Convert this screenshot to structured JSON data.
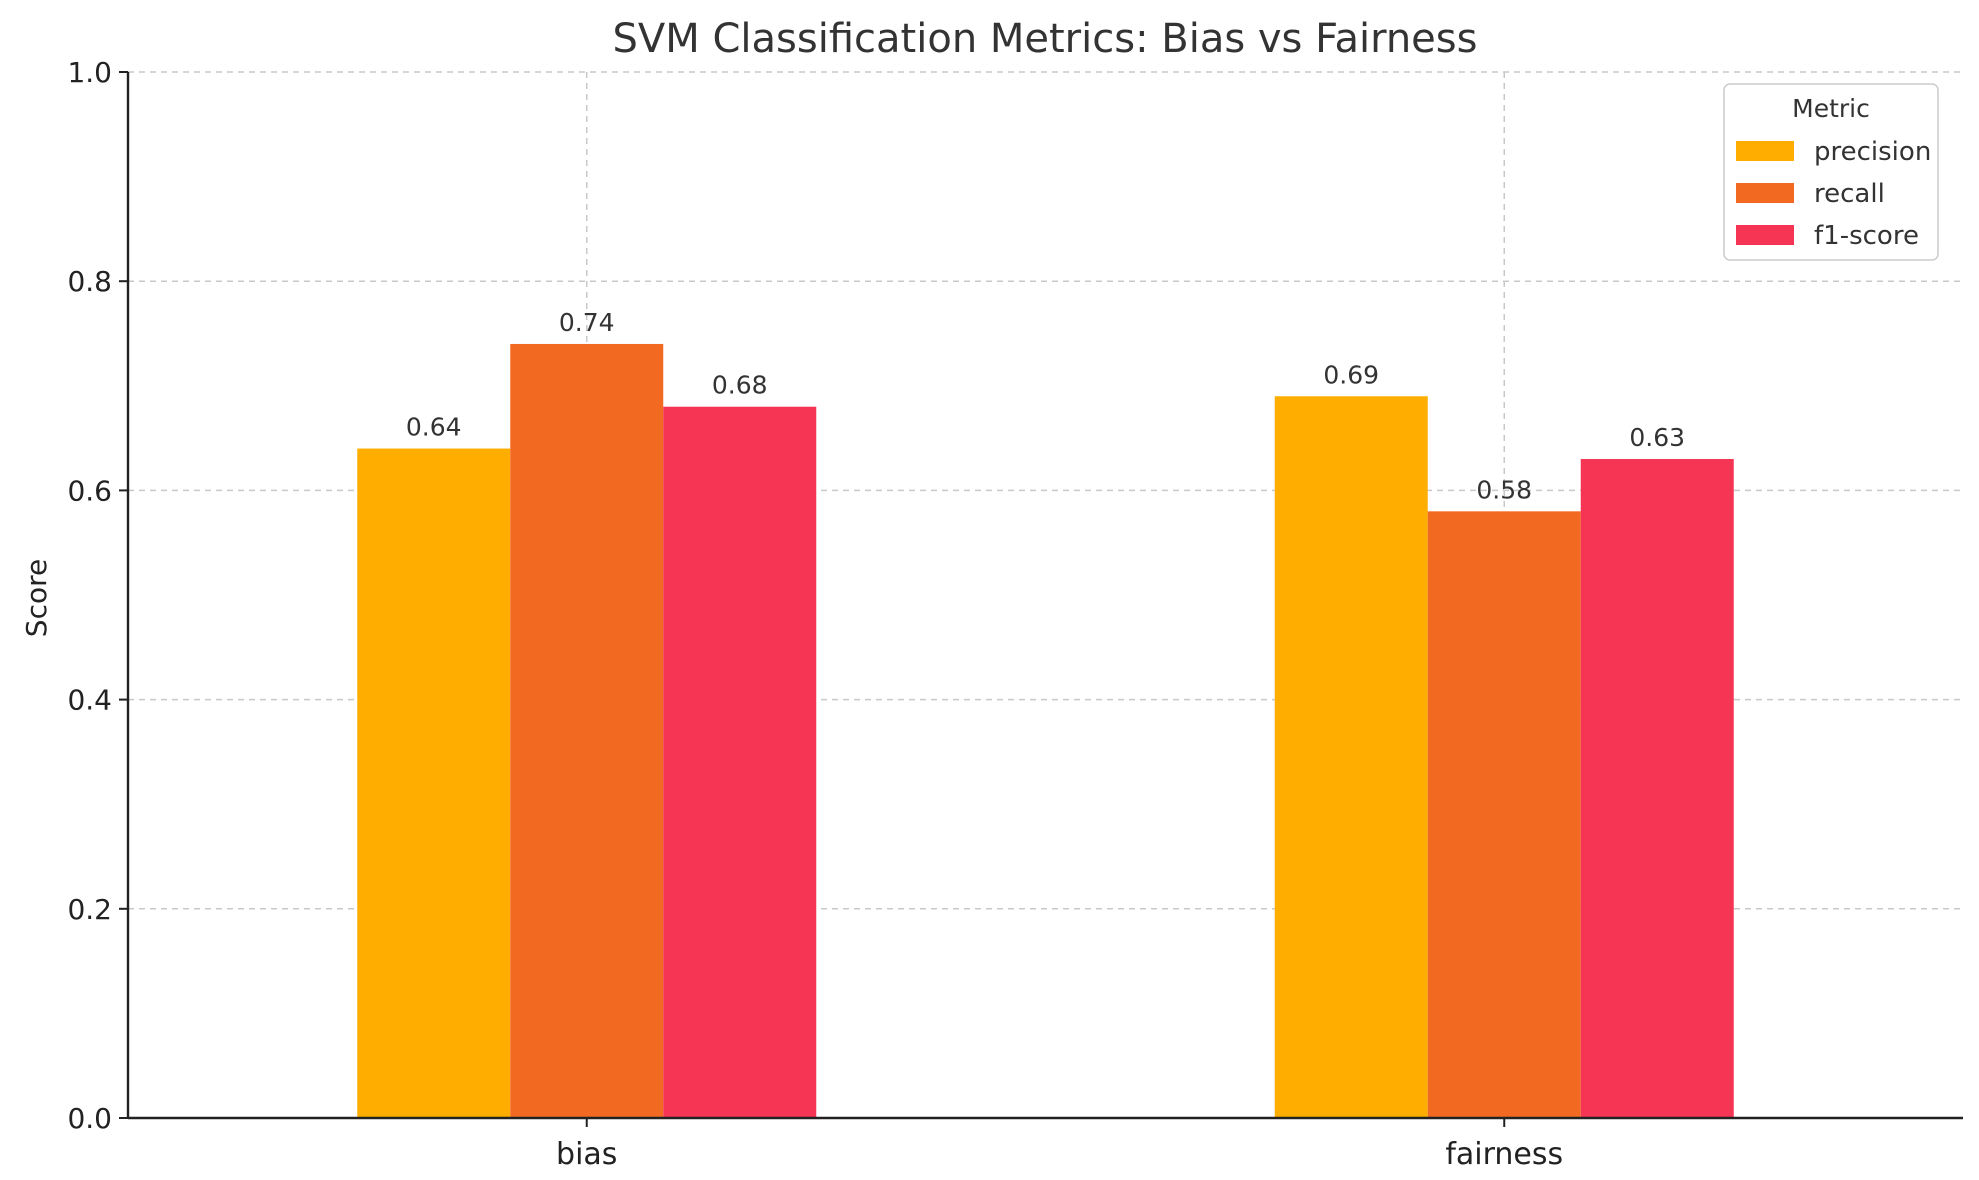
{
  "chart_data": {
    "type": "bar",
    "title": "SVM Classification Metrics: Bias vs Fairness",
    "xlabel": "",
    "ylabel": "Score",
    "ylim": [
      0,
      1.0
    ],
    "yticks": [
      "0.0",
      "0.2",
      "0.4",
      "0.6",
      "0.8",
      "1.0"
    ],
    "grid": true,
    "legend_title": "Metric",
    "legend_position": "top-right",
    "categories": [
      "bias",
      "fairness"
    ],
    "series": [
      {
        "name": "precision",
        "color": "#FFAE00",
        "values": [
          0.64,
          0.69
        ],
        "labels": [
          "0.64",
          "0.69"
        ]
      },
      {
        "name": "recall",
        "color": "#F26A22",
        "values": [
          0.74,
          0.58
        ],
        "labels": [
          "0.74",
          "0.58"
        ]
      },
      {
        "name": "f1-score",
        "color": "#F63454",
        "values": [
          0.68,
          0.63
        ],
        "labels": [
          "0.68",
          "0.63"
        ]
      }
    ]
  }
}
